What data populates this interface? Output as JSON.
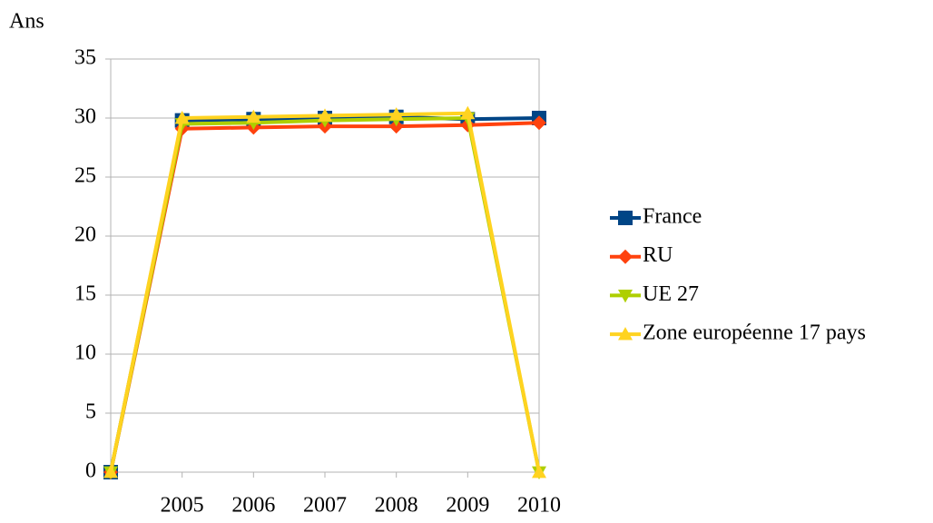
{
  "chart_data": {
    "type": "line",
    "y_label": "Ans",
    "categories": [
      null,
      "2005",
      "2006",
      "2007",
      "2008",
      "2009",
      "2010"
    ],
    "series": [
      {
        "name": "France",
        "color": "#004586",
        "marker": "square",
        "values": [
          0,
          29.8,
          29.9,
          30.0,
          30.1,
          29.9,
          30.0
        ]
      },
      {
        "name": "RU",
        "color": "#ff420e",
        "marker": "diamond",
        "values": [
          0,
          29.1,
          29.2,
          29.3,
          29.3,
          29.4,
          29.6
        ]
      },
      {
        "name": "UE 27",
        "color": "#aecf00",
        "marker": "triangle-down",
        "values": [
          0,
          29.5,
          29.6,
          29.8,
          29.9,
          30.0,
          0
        ]
      },
      {
        "name": "Zone européenne 17 pays",
        "color": "#ffd320",
        "marker": "triangle-up",
        "values": [
          0,
          30.0,
          30.1,
          30.2,
          30.3,
          30.4,
          0
        ]
      }
    ],
    "ylim": [
      0,
      35
    ],
    "yticks": [
      0,
      5,
      10,
      15,
      20,
      25,
      30,
      35
    ],
    "grid": true,
    "legend": "right"
  }
}
